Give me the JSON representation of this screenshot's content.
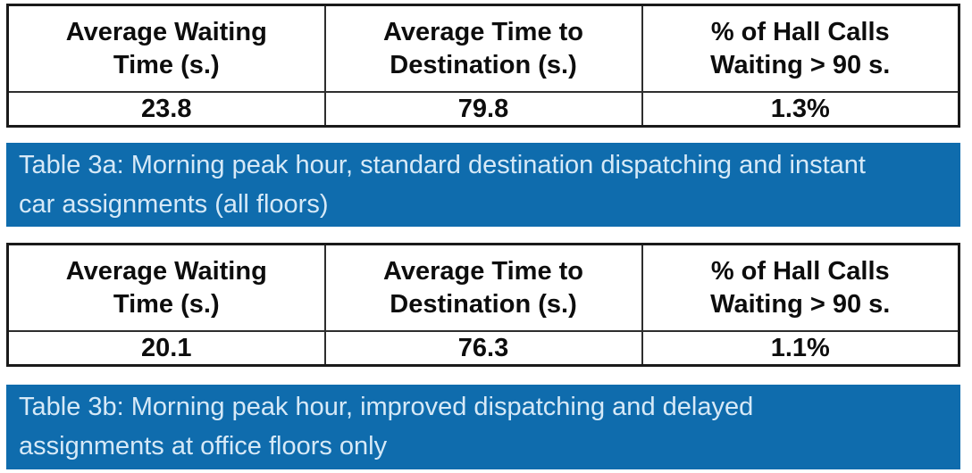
{
  "colors": {
    "page_background": "#ffffff",
    "caption_bar_bg": "#0f6cad",
    "caption_text": "#d6e9f7",
    "table_border": "#1a1a1a",
    "table_text": "#0d0d0d"
  },
  "tables": [
    {
      "headers": [
        "Average Waiting\nTime (s.)",
        "Average Time to\nDestination (s.)",
        "% of Hall Calls\nWaiting > 90 s."
      ],
      "values": [
        "23.8",
        "79.8",
        "1.3%"
      ],
      "caption": "Table 3a: Morning peak hour, standard destination dispatching and instant\ncar assignments (all floors)"
    },
    {
      "headers": [
        "Average Waiting\nTime (s.)",
        "Average Time to\nDestination (s.)",
        "% of Hall Calls\nWaiting > 90 s."
      ],
      "values": [
        "20.1",
        "76.3",
        "1.1%"
      ],
      "caption": "Table 3b: Morning peak hour, improved dispatching and delayed\nassignments at office floors only"
    }
  ]
}
